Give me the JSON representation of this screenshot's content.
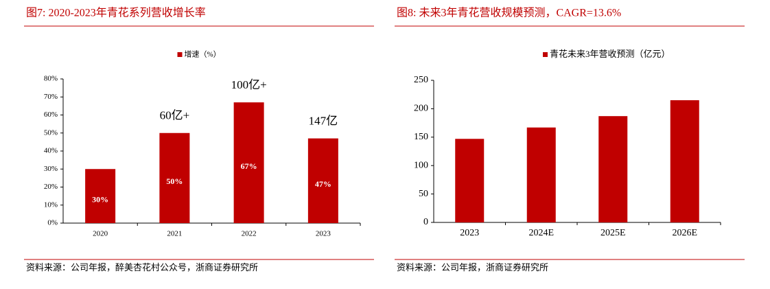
{
  "chart_data": [
    {
      "type": "bar",
      "title": "图7:  2020-2023年青花系列营收增长率",
      "series_name": "增速（%）",
      "categories": [
        "2020",
        "2021",
        "2022",
        "2023"
      ],
      "values": [
        30,
        50,
        67,
        47
      ],
      "value_labels": [
        "30%",
        "50%",
        "67%",
        "47%"
      ],
      "annotations": [
        null,
        "60亿+",
        "100亿+",
        "147亿"
      ],
      "color": "#c00000",
      "ylim": [
        0,
        80
      ],
      "yticks": [
        {
          "value": 0,
          "label": "0%"
        },
        {
          "value": 10,
          "label": "10%"
        },
        {
          "value": 20,
          "label": "20%"
        },
        {
          "value": 30,
          "label": "30%"
        },
        {
          "value": 40,
          "label": "40%"
        },
        {
          "value": 50,
          "label": "50%"
        },
        {
          "value": 60,
          "label": "60%"
        },
        {
          "value": 70,
          "label": "70%"
        },
        {
          "value": 80,
          "label": "80%"
        }
      ],
      "source": "资料来源：公司年报，醉美杏花村公众号，浙商证券研究所"
    },
    {
      "type": "bar",
      "title": "图8:  未来3年青花营收规模预测，CAGR=13.6%",
      "series_name": "青花未来3年营收预测（亿元）",
      "categories": [
        "2023",
        "2024E",
        "2025E",
        "2026E"
      ],
      "values": [
        147,
        167,
        187,
        215
      ],
      "color": "#c00000",
      "ylim": [
        0,
        250
      ],
      "yticks": [
        0,
        50,
        100,
        150,
        200,
        250
      ],
      "source": "资料来源：公司年报，浙商证券研究所"
    }
  ]
}
